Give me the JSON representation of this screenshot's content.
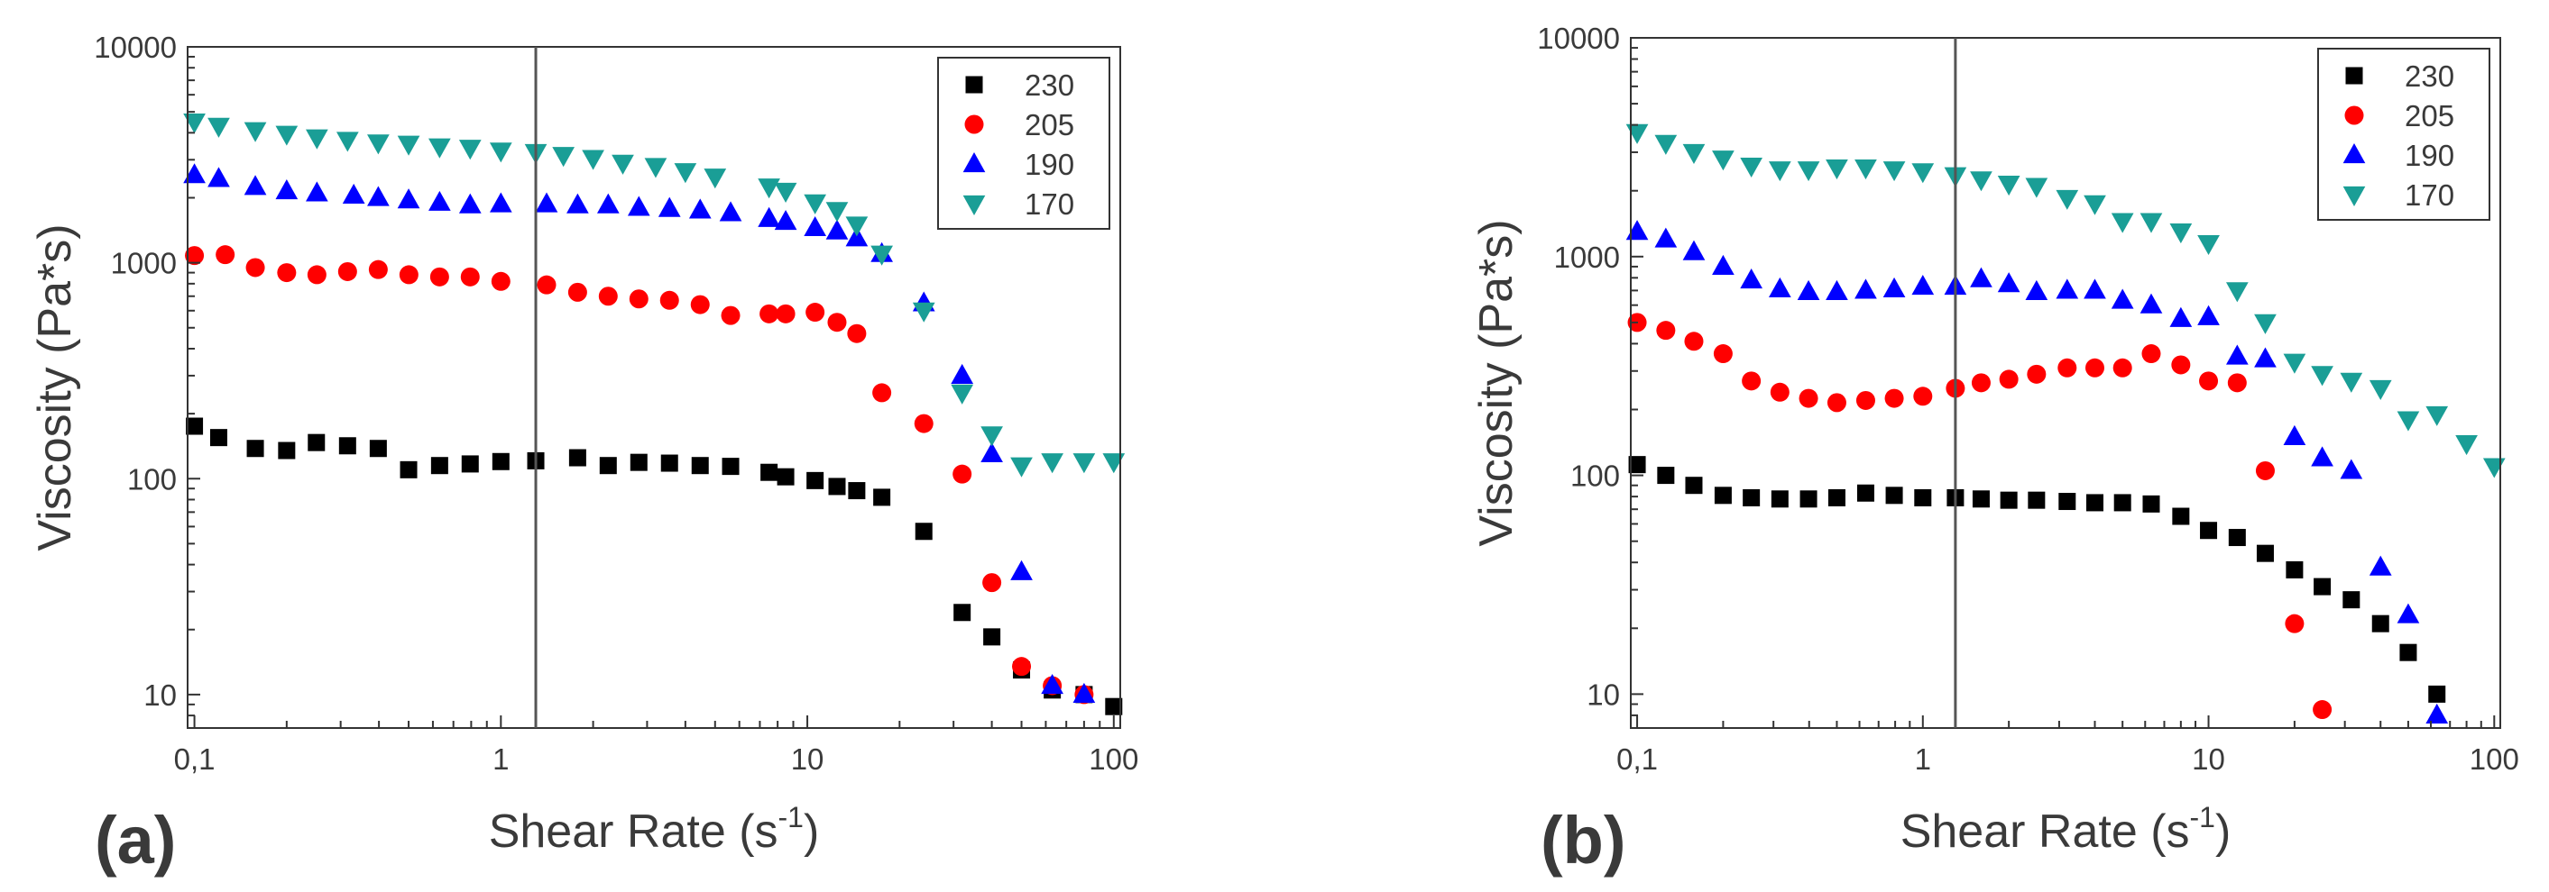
{
  "chart_data": [
    {
      "panel_label": "(a)",
      "type": "scatter",
      "xlabel": "Shear Rate (s",
      "xlabel_sup": "-1",
      "xlabel_close": ")",
      "ylabel": "Viscosity (Pa*s)",
      "x_scale": "log",
      "y_scale": "log",
      "xlim": [
        0.095,
        105
      ],
      "ylim": [
        7,
        10000
      ],
      "x_ticks": [
        {
          "value": 0.1,
          "label": "0,1"
        },
        {
          "value": 1,
          "label": "1"
        },
        {
          "value": 10,
          "label": "10"
        },
        {
          "value": 100,
          "label": "100"
        }
      ],
      "y_ticks": [
        {
          "value": 10,
          "label": "10"
        },
        {
          "value": 100,
          "label": "100"
        },
        {
          "value": 1000,
          "label": "1000"
        },
        {
          "value": 10000,
          "label": "10000"
        }
      ],
      "vertical_line_x": 1.3,
      "legend_position": "top-right",
      "series": [
        {
          "name": "230",
          "marker": "square",
          "color": "#000000",
          "points": [
            [
              0.1,
              175
            ],
            [
              0.12,
              155
            ],
            [
              0.158,
              138
            ],
            [
              0.2,
              135
            ],
            [
              0.25,
              147
            ],
            [
              0.316,
              142
            ],
            [
              0.398,
              138
            ],
            [
              0.5,
              110
            ],
            [
              0.631,
              115
            ],
            [
              0.794,
              117
            ],
            [
              1.0,
              120
            ],
            [
              1.3,
              121
            ],
            [
              1.78,
              125
            ],
            [
              2.24,
              115
            ],
            [
              2.82,
              119
            ],
            [
              3.55,
              118
            ],
            [
              4.47,
              115
            ],
            [
              5.62,
              114
            ],
            [
              7.5,
              107
            ],
            [
              8.5,
              102
            ],
            [
              10.6,
              98
            ],
            [
              12.5,
              92
            ],
            [
              14.5,
              88
            ],
            [
              17.5,
              82
            ],
            [
              24,
              57
            ],
            [
              32,
              24
            ],
            [
              40,
              18.5
            ],
            [
              50,
              13
            ],
            [
              63,
              10.5
            ],
            [
              80,
              10
            ],
            [
              100,
              8.8
            ]
          ]
        },
        {
          "name": "205",
          "marker": "circle",
          "color": "#ff0000",
          "points": [
            [
              0.1,
              1080
            ],
            [
              0.126,
              1090
            ],
            [
              0.158,
              950
            ],
            [
              0.2,
              900
            ],
            [
              0.251,
              880
            ],
            [
              0.316,
              910
            ],
            [
              0.398,
              930
            ],
            [
              0.501,
              880
            ],
            [
              0.631,
              860
            ],
            [
              0.794,
              860
            ],
            [
              1.0,
              820
            ],
            [
              1.41,
              790
            ],
            [
              1.78,
              730
            ],
            [
              2.24,
              700
            ],
            [
              2.82,
              680
            ],
            [
              3.55,
              670
            ],
            [
              4.47,
              640
            ],
            [
              5.62,
              570
            ],
            [
              7.5,
              580
            ],
            [
              8.5,
              580
            ],
            [
              10.6,
              590
            ],
            [
              12.5,
              530
            ],
            [
              14.5,
              470
            ],
            [
              17.5,
              250
            ],
            [
              24,
              180
            ],
            [
              32,
              105
            ],
            [
              40,
              33
            ],
            [
              50,
              13.5
            ],
            [
              63,
              11
            ],
            [
              80,
              10
            ]
          ]
        },
        {
          "name": "190",
          "marker": "triangle-up",
          "color": "#0000ff",
          "points": [
            [
              0.1,
              2550
            ],
            [
              0.12,
              2450
            ],
            [
              0.158,
              2250
            ],
            [
              0.2,
              2150
            ],
            [
              0.251,
              2100
            ],
            [
              0.331,
              2050
            ],
            [
              0.398,
              2000
            ],
            [
              0.5,
              1950
            ],
            [
              0.631,
              1900
            ],
            [
              0.794,
              1850
            ],
            [
              1.0,
              1870
            ],
            [
              1.41,
              1870
            ],
            [
              1.78,
              1850
            ],
            [
              2.24,
              1850
            ],
            [
              2.82,
              1800
            ],
            [
              3.55,
              1780
            ],
            [
              4.47,
              1750
            ],
            [
              5.62,
              1700
            ],
            [
              7.5,
              1600
            ],
            [
              8.5,
              1550
            ],
            [
              10.6,
              1450
            ],
            [
              12.5,
              1400
            ],
            [
              14.5,
              1300
            ],
            [
              17.5,
              1100
            ],
            [
              24,
              650
            ],
            [
              32,
              300
            ],
            [
              40,
              130
            ],
            [
              50,
              37
            ],
            [
              63,
              11
            ],
            [
              80,
              10
            ]
          ]
        },
        {
          "name": "170",
          "marker": "triangle-down",
          "color": "#1a9e96",
          "points": [
            [
              0.1,
              4500
            ],
            [
              0.12,
              4300
            ],
            [
              0.158,
              4100
            ],
            [
              0.2,
              3950
            ],
            [
              0.251,
              3800
            ],
            [
              0.316,
              3700
            ],
            [
              0.398,
              3600
            ],
            [
              0.5,
              3550
            ],
            [
              0.631,
              3450
            ],
            [
              0.794,
              3400
            ],
            [
              1.0,
              3300
            ],
            [
              1.3,
              3250
            ],
            [
              1.6,
              3150
            ],
            [
              2.0,
              3050
            ],
            [
              2.5,
              2900
            ],
            [
              3.2,
              2800
            ],
            [
              4.0,
              2650
            ],
            [
              5.0,
              2500
            ],
            [
              7.5,
              2250
            ],
            [
              8.5,
              2150
            ],
            [
              10.6,
              1900
            ],
            [
              12.5,
              1750
            ],
            [
              14.5,
              1500
            ],
            [
              17.5,
              1100
            ],
            [
              24,
              600
            ],
            [
              32,
              250
            ],
            [
              40,
              160
            ],
            [
              50,
              115
            ],
            [
              63,
              120
            ],
            [
              80,
              120
            ],
            [
              100,
              120
            ]
          ]
        }
      ]
    },
    {
      "panel_label": "(b)",
      "type": "scatter",
      "xlabel": "Shear Rate (s",
      "xlabel_sup": "-1",
      "xlabel_close": ")",
      "ylabel": "Viscosity (Pa*s)",
      "x_scale": "log",
      "y_scale": "log",
      "xlim": [
        0.095,
        105
      ],
      "ylim": [
        7,
        10000
      ],
      "x_ticks": [
        {
          "value": 0.1,
          "label": "0,1"
        },
        {
          "value": 1,
          "label": "1"
        },
        {
          "value": 10,
          "label": "10"
        },
        {
          "value": 100,
          "label": "100"
        }
      ],
      "y_ticks": [
        {
          "value": 10,
          "label": "10"
        },
        {
          "value": 100,
          "label": "100"
        },
        {
          "value": 1000,
          "label": "1000"
        },
        {
          "value": 10000,
          "label": "10000"
        }
      ],
      "vertical_line_x": 1.3,
      "legend_position": "top-right",
      "series": [
        {
          "name": "230",
          "marker": "square",
          "color": "#000000",
          "points": [
            [
              0.1,
              112
            ],
            [
              0.126,
              100
            ],
            [
              0.158,
              90
            ],
            [
              0.2,
              81
            ],
            [
              0.251,
              79
            ],
            [
              0.316,
              78
            ],
            [
              0.398,
              78
            ],
            [
              0.5,
              79
            ],
            [
              0.631,
              83
            ],
            [
              0.794,
              81
            ],
            [
              1.0,
              79
            ],
            [
              1.3,
              79
            ],
            [
              1.6,
              78
            ],
            [
              2.0,
              77
            ],
            [
              2.5,
              77
            ],
            [
              3.2,
              76
            ],
            [
              4.0,
              75
            ],
            [
              5.0,
              75
            ],
            [
              6.3,
              74
            ],
            [
              8.0,
              65
            ],
            [
              10,
              56
            ],
            [
              12.6,
              52
            ],
            [
              15.8,
              44
            ],
            [
              20,
              37
            ],
            [
              25,
              31
            ],
            [
              31.6,
              27
            ],
            [
              40,
              21
            ],
            [
              50,
              15.5
            ],
            [
              63,
              10
            ]
          ]
        },
        {
          "name": "205",
          "marker": "circle",
          "color": "#ff0000",
          "points": [
            [
              0.1,
              500
            ],
            [
              0.126,
              460
            ],
            [
              0.158,
              410
            ],
            [
              0.2,
              360
            ],
            [
              0.251,
              270
            ],
            [
              0.316,
              240
            ],
            [
              0.398,
              225
            ],
            [
              0.5,
              215
            ],
            [
              0.631,
              220
            ],
            [
              0.794,
              225
            ],
            [
              1.0,
              230
            ],
            [
              1.3,
              250
            ],
            [
              1.6,
              265
            ],
            [
              2.0,
              275
            ],
            [
              2.5,
              290
            ],
            [
              3.2,
              310
            ],
            [
              4.0,
              310
            ],
            [
              5.0,
              310
            ],
            [
              6.3,
              360
            ],
            [
              8.0,
              320
            ],
            [
              10,
              270
            ],
            [
              12.6,
              265
            ],
            [
              15.8,
              105
            ],
            [
              20,
              21
            ],
            [
              25,
              8.5
            ]
          ]
        },
        {
          "name": "190",
          "marker": "triangle-up",
          "color": "#0000ff",
          "points": [
            [
              0.1,
              1300
            ],
            [
              0.126,
              1200
            ],
            [
              0.158,
              1050
            ],
            [
              0.2,
              900
            ],
            [
              0.251,
              780
            ],
            [
              0.316,
              710
            ],
            [
              0.398,
              690
            ],
            [
              0.5,
              690
            ],
            [
              0.631,
              700
            ],
            [
              0.794,
              710
            ],
            [
              1.0,
              730
            ],
            [
              1.3,
              730
            ],
            [
              1.6,
              790
            ],
            [
              2.0,
              750
            ],
            [
              2.5,
              690
            ],
            [
              3.2,
              700
            ],
            [
              4.0,
              700
            ],
            [
              5.0,
              630
            ],
            [
              6.3,
              600
            ],
            [
              8.0,
              520
            ],
            [
              10,
              530
            ],
            [
              12.6,
              350
            ],
            [
              15.8,
              340
            ],
            [
              20,
              150
            ],
            [
              25,
              120
            ],
            [
              31.6,
              105
            ],
            [
              40,
              38
            ],
            [
              50,
              23
            ],
            [
              63,
              8
            ]
          ]
        },
        {
          "name": "170",
          "marker": "triangle-down",
          "color": "#1a9e96",
          "points": [
            [
              0.1,
              3700
            ],
            [
              0.126,
              3300
            ],
            [
              0.158,
              3000
            ],
            [
              0.2,
              2800
            ],
            [
              0.251,
              2600
            ],
            [
              0.316,
              2500
            ],
            [
              0.398,
              2500
            ],
            [
              0.5,
              2550
            ],
            [
              0.631,
              2550
            ],
            [
              0.794,
              2500
            ],
            [
              1.0,
              2450
            ],
            [
              1.3,
              2350
            ],
            [
              1.6,
              2250
            ],
            [
              2.0,
              2150
            ],
            [
              2.5,
              2100
            ],
            [
              3.2,
              1850
            ],
            [
              4.0,
              1750
            ],
            [
              5.0,
              1450
            ],
            [
              6.3,
              1450
            ],
            [
              8.0,
              1300
            ],
            [
              10,
              1150
            ],
            [
              12.6,
              700
            ],
            [
              15.8,
              500
            ],
            [
              20,
              330
            ],
            [
              25,
              290
            ],
            [
              31.6,
              270
            ],
            [
              40,
              250
            ],
            [
              50,
              180
            ],
            [
              63,
              190
            ],
            [
              80,
              140
            ],
            [
              100,
              110
            ]
          ]
        }
      ]
    }
  ]
}
